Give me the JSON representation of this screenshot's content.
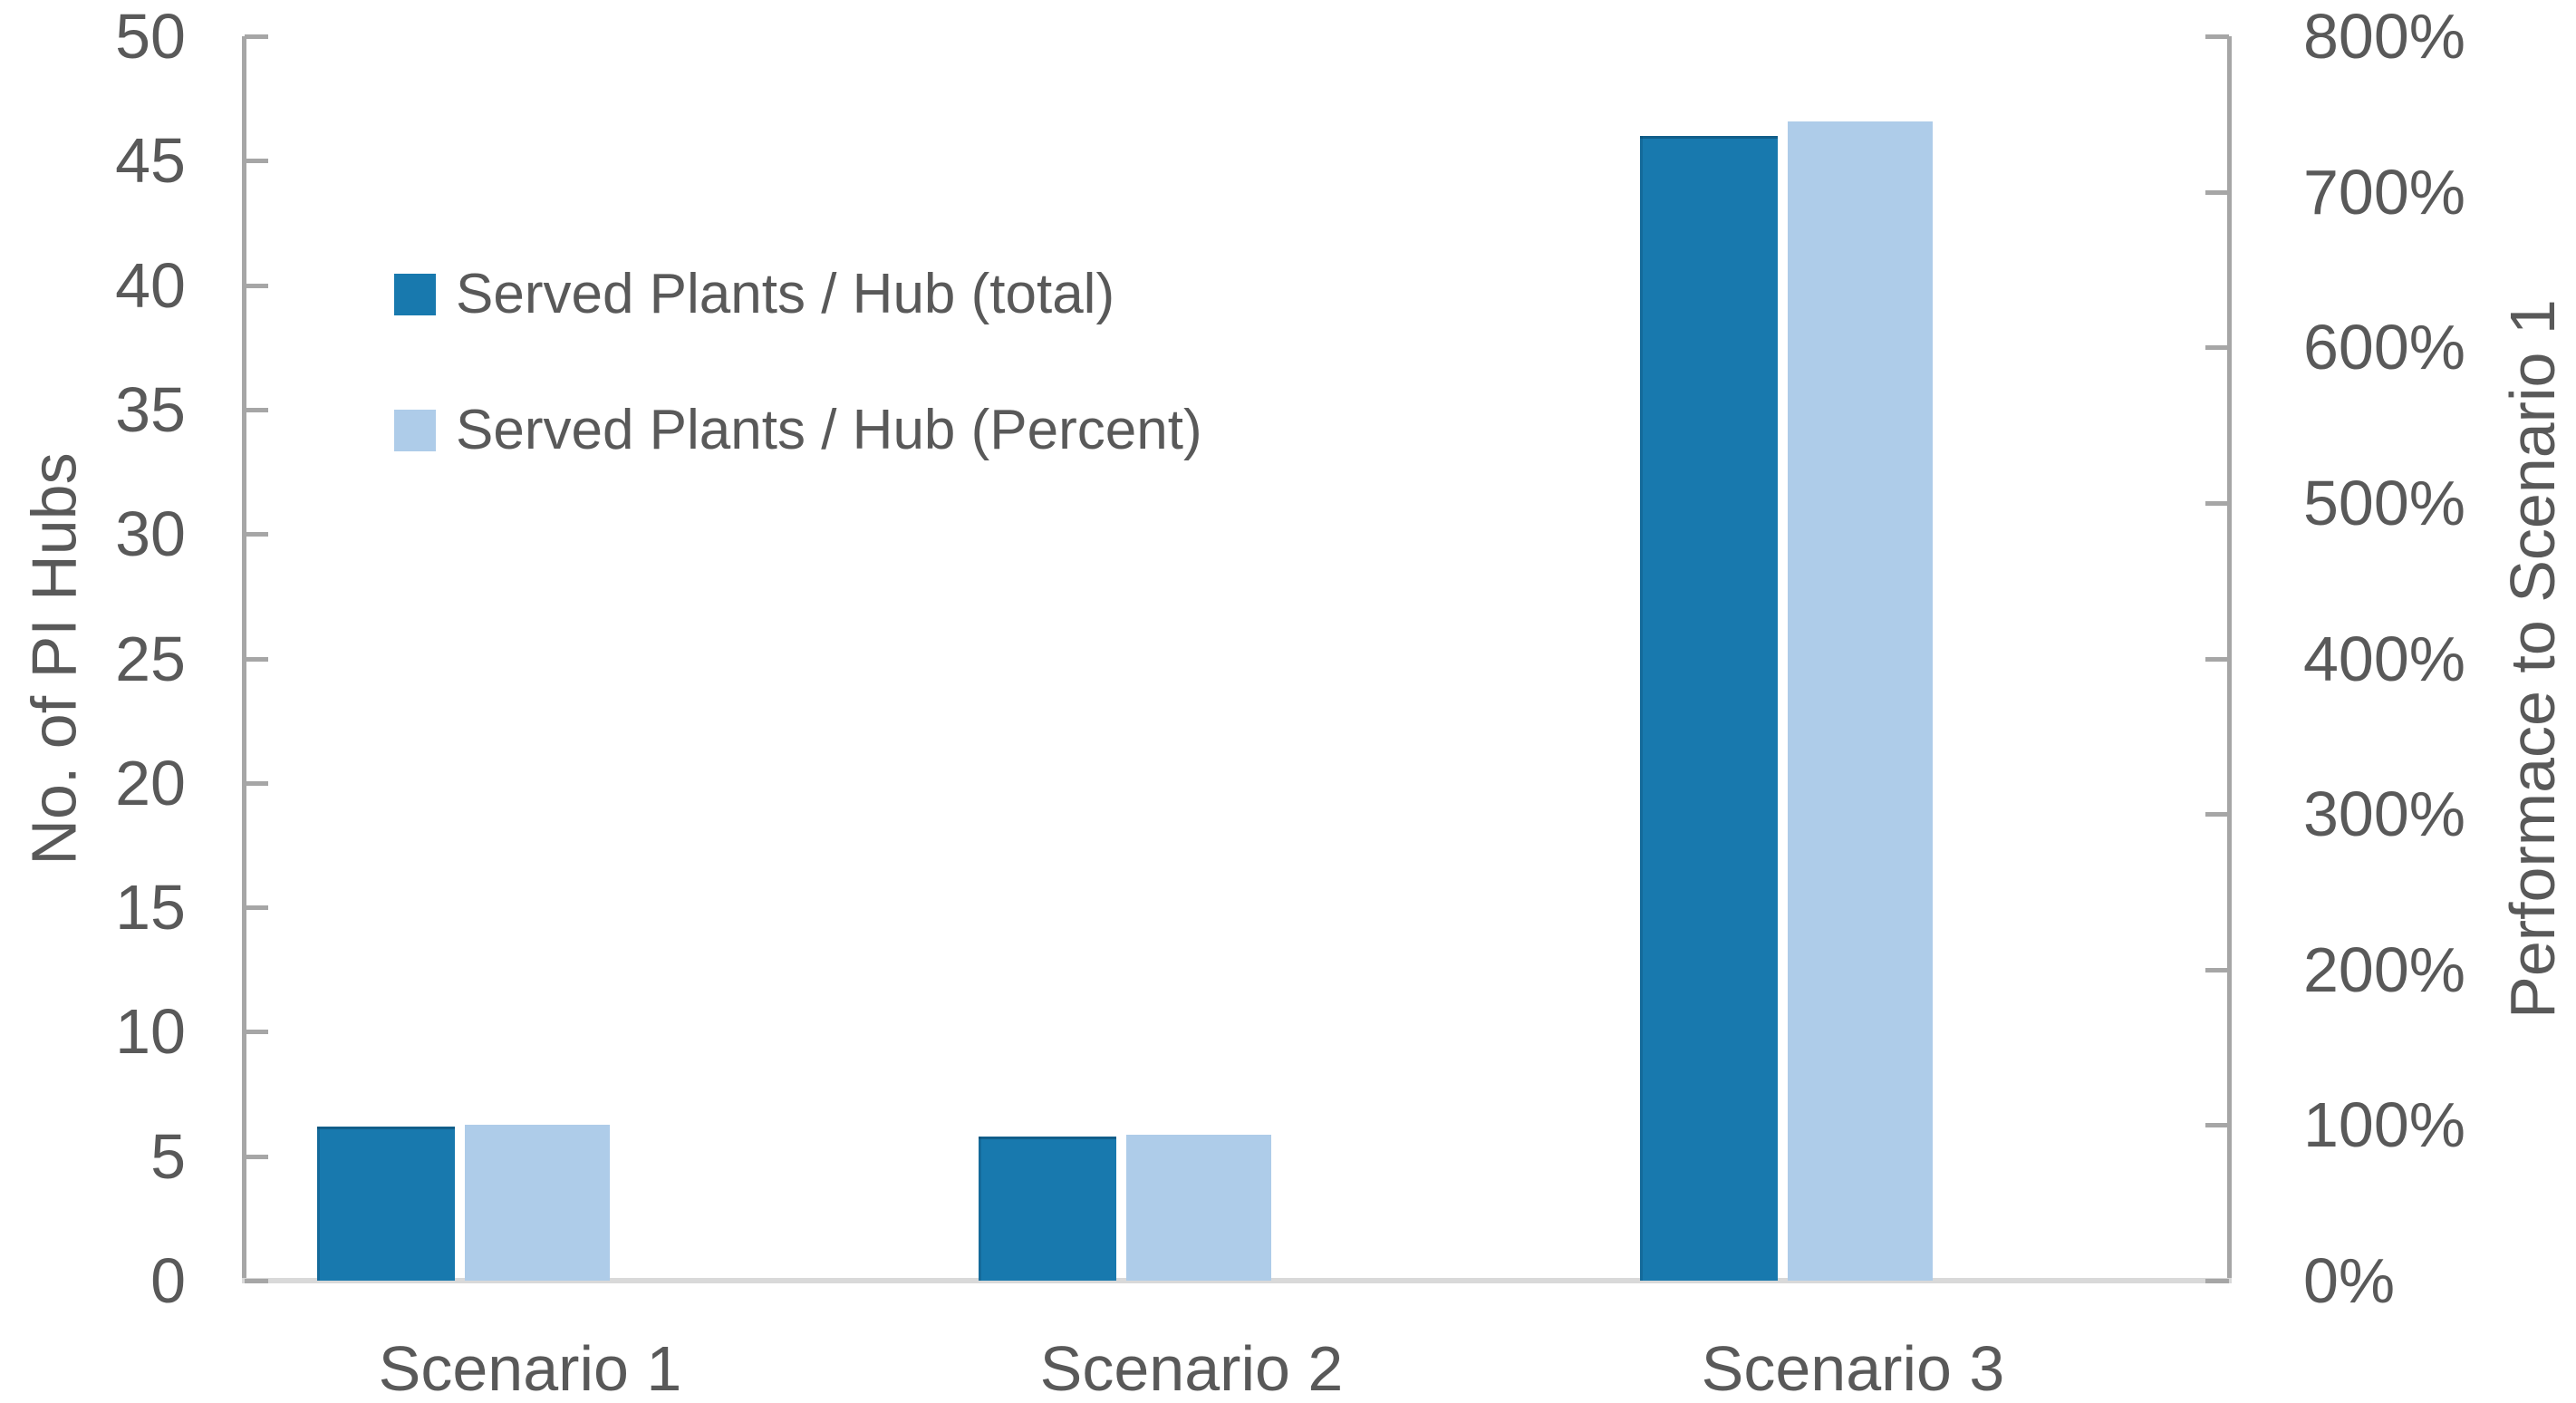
{
  "chart_data": {
    "type": "bar",
    "title": "",
    "categories": [
      "Scenario 1",
      "Scenario 2",
      "Scenario 3"
    ],
    "series": [
      {
        "name": "Served Plants / Hub (total)",
        "axis": "left",
        "color": "#1879AE",
        "values": [
          6.2,
          5.8,
          46
        ]
      },
      {
        "name": "Served Plants / Hub (Percent)",
        "axis": "right",
        "color": "#AECCE9",
        "values": [
          100,
          94,
          745
        ],
        "unit": "%"
      }
    ],
    "left_axis": {
      "title": "No. of PI Hubs",
      "min": 0,
      "max": 50,
      "step": 5,
      "ticks": [
        "50",
        "45",
        "40",
        "35",
        "30",
        "25",
        "20",
        "15",
        "10",
        "5",
        "0"
      ]
    },
    "right_axis": {
      "title": "Performace to Scenario 1",
      "min": 0,
      "max": 800,
      "step": 100,
      "unit": "%",
      "ticks": [
        "800%",
        "700%",
        "600%",
        "500%",
        "400%",
        "300%",
        "200%",
        "100%",
        "0%"
      ]
    },
    "legend_position": "top-left-inside",
    "grid": false
  },
  "colors": {
    "axis_line": "#A6A6A6",
    "baseline": "#D9D9D9",
    "text": "#595959",
    "background": "#FFFFFF"
  }
}
